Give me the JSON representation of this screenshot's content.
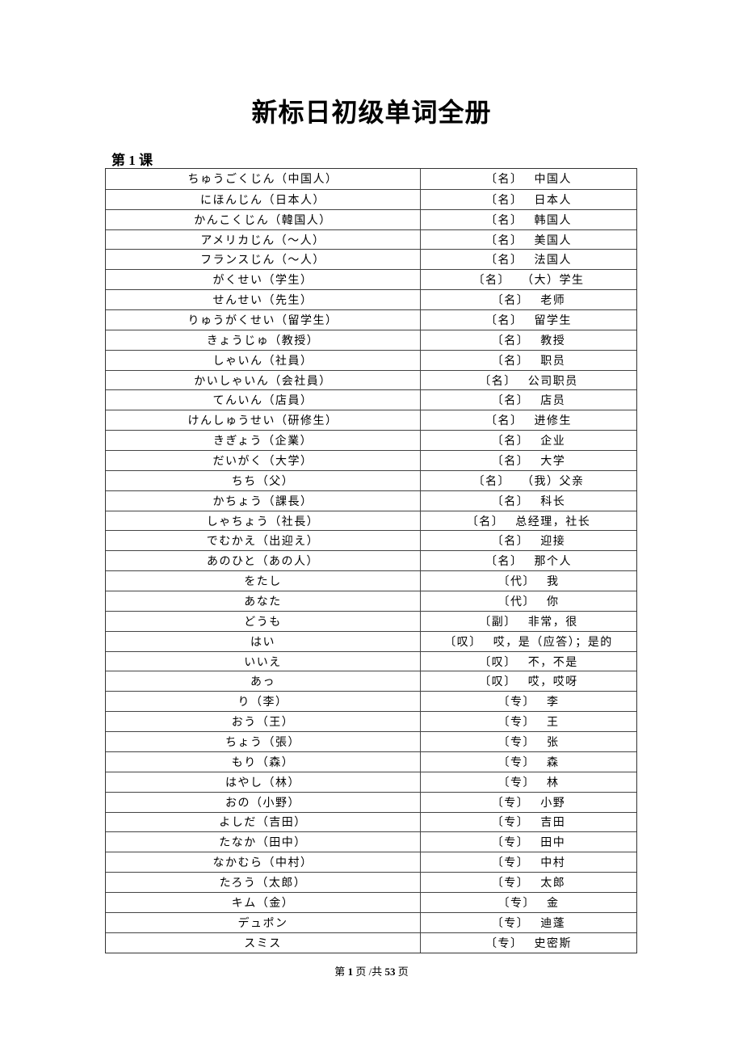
{
  "document": {
    "title": "新标日初级单词全册",
    "lesson": "第 1 课",
    "rows": [
      {
        "jp": "ちゅうごくじん（中国人）",
        "pos": "〔名〕",
        "cn": "中国人"
      },
      {
        "jp": "にほんじん（日本人）",
        "pos": "〔名〕",
        "cn": "日本人"
      },
      {
        "jp": "かんこくじん（韓国人）",
        "pos": "〔名〕",
        "cn": "韩国人"
      },
      {
        "jp": "アメリカじん（～人）",
        "pos": "〔名〕",
        "cn": "美国人"
      },
      {
        "jp": "フランスじん（～人）",
        "pos": "〔名〕",
        "cn": "法国人"
      },
      {
        "jp": "がくせい（学生）",
        "pos": "〔名〕",
        "cn": "（大）学生"
      },
      {
        "jp": "せんせい（先生）",
        "pos": "〔名〕",
        "cn": "老师"
      },
      {
        "jp": "りゅうがくせい（留学生）",
        "pos": "〔名〕",
        "cn": "留学生"
      },
      {
        "jp": "きょうじゅ（教授）",
        "pos": "〔名〕",
        "cn": "教授"
      },
      {
        "jp": "しゃいん（社員）",
        "pos": "〔名〕",
        "cn": "职员"
      },
      {
        "jp": "かいしゃいん（会社員）",
        "pos": "〔名〕",
        "cn": "公司职员"
      },
      {
        "jp": "てんいん（店員）",
        "pos": "〔名〕",
        "cn": "店员"
      },
      {
        "jp": "けんしゅうせい（研修生）",
        "pos": "〔名〕",
        "cn": "进修生"
      },
      {
        "jp": "きぎょう（企業）",
        "pos": "〔名〕",
        "cn": "企业"
      },
      {
        "jp": "だいがく（大学）",
        "pos": "〔名〕",
        "cn": "大学"
      },
      {
        "jp": "ちち（父）",
        "pos": "〔名〕",
        "cn": "（我）父亲"
      },
      {
        "jp": "かちょう（課長）",
        "pos": "〔名〕",
        "cn": "科长"
      },
      {
        "jp": "しゃちょう（社長）",
        "pos": "〔名〕",
        "cn": "总经理，社长"
      },
      {
        "jp": "でむかえ（出迎え）",
        "pos": "〔名〕",
        "cn": "迎接"
      },
      {
        "jp": "あのひと（あの人）",
        "pos": "〔名〕",
        "cn": "那个人"
      },
      {
        "jp": "をたし",
        "pos": "〔代〕",
        "cn": "我"
      },
      {
        "jp": "あなた",
        "pos": "〔代〕",
        "cn": "你"
      },
      {
        "jp": "どうも",
        "pos": "〔副〕",
        "cn": "非常，很"
      },
      {
        "jp": "はい",
        "pos": "〔叹〕",
        "cn": "哎，是（应答）；是的"
      },
      {
        "jp": "いいえ",
        "pos": "〔叹〕",
        "cn": "不，不是"
      },
      {
        "jp": "あっ",
        "pos": "〔叹〕",
        "cn": "哎，哎呀"
      },
      {
        "jp": "り（李）",
        "pos": "〔专〕",
        "cn": "李"
      },
      {
        "jp": "おう（王）",
        "pos": "〔专〕",
        "cn": "王"
      },
      {
        "jp": "ちょう（張）",
        "pos": "〔专〕",
        "cn": "张"
      },
      {
        "jp": "もり（森）",
        "pos": "〔专〕",
        "cn": "森"
      },
      {
        "jp": "はやし（林）",
        "pos": "〔专〕",
        "cn": "林"
      },
      {
        "jp": "おの（小野）",
        "pos": "〔专〕",
        "cn": "小野"
      },
      {
        "jp": "よしだ（吉田）",
        "pos": "〔专〕",
        "cn": "吉田"
      },
      {
        "jp": "たなか（田中）",
        "pos": "〔专〕",
        "cn": "田中"
      },
      {
        "jp": "なかむら（中村）",
        "pos": "〔专〕",
        "cn": "中村"
      },
      {
        "jp": "たろう（太郎）",
        "pos": "〔专〕",
        "cn": "太郎"
      },
      {
        "jp": "キム（金）",
        "pos": "〔专〕",
        "cn": "金"
      },
      {
        "jp": "デュポン",
        "pos": "〔专〕",
        "cn": "迪蓬"
      },
      {
        "jp": "スミス",
        "pos": "〔专〕",
        "cn": "史密斯"
      }
    ]
  },
  "footer": {
    "prefix": "第 ",
    "page": "1",
    "middle": " 页 /共 ",
    "total": "53",
    "suffix": " 页"
  }
}
